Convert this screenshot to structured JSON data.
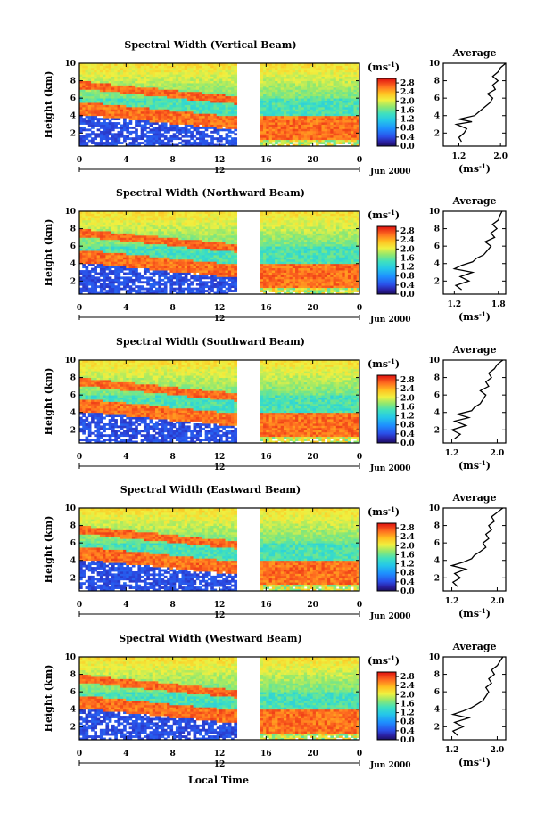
{
  "figure": {
    "xlabel": "Local Time",
    "height_label": "Height (km)",
    "cbar_unit_prefix": "(ms",
    "cbar_unit_exp": "-1",
    "cbar_unit_suffix": ")",
    "avg_title": "Average",
    "date_label": "Jun 2000",
    "midnight_label": "12",
    "missing_data_hours": [
      13.5,
      15.5
    ]
  },
  "chart_data": [
    {
      "type": "heatmap",
      "title": "Spectral Width (Vertical Beam)",
      "x_ticks": [
        "0",
        "4",
        "8",
        "12",
        "16",
        "20",
        "0"
      ],
      "x_range_hours": [
        0,
        24
      ],
      "y_ticks": [
        "2",
        "4",
        "6",
        "8",
        "10"
      ],
      "y_range_km": [
        0.5,
        10
      ],
      "colorbar_ticks": [
        "0.0",
        "0.4",
        "0.8",
        "1.2",
        "1.6",
        "2.0",
        "2.4",
        "2.8"
      ],
      "colorbar_range": [
        0,
        3.0
      ],
      "average_profile": {
        "x_ticks": [
          "1.2",
          "2.0"
        ],
        "xlim": [
          0.9,
          2.1
        ],
        "heights": [
          1.0,
          1.5,
          2.0,
          2.5,
          3.0,
          3.3,
          3.6,
          4.0,
          4.5,
          5.0,
          5.5,
          6.0,
          6.5,
          7.0,
          7.5,
          8.0,
          8.5,
          9.0,
          9.5,
          10.0
        ],
        "values": [
          1.25,
          1.2,
          1.3,
          1.35,
          1.15,
          1.45,
          1.2,
          1.5,
          1.6,
          1.7,
          1.8,
          1.85,
          1.75,
          1.9,
          1.85,
          1.95,
          1.85,
          1.95,
          2.0,
          2.1
        ]
      }
    },
    {
      "type": "heatmap",
      "title": "Spectral Width (Northward Beam)",
      "x_ticks": [
        "0",
        "4",
        "8",
        "12",
        "16",
        "20",
        "0"
      ],
      "x_range_hours": [
        0,
        24
      ],
      "y_ticks": [
        "2",
        "4",
        "6",
        "8",
        "10"
      ],
      "y_range_km": [
        0.5,
        10
      ],
      "colorbar_ticks": [
        "0.0",
        "0.4",
        "0.8",
        "1.2",
        "1.6",
        "2.0",
        "2.4",
        "2.8"
      ],
      "colorbar_range": [
        0,
        3.0
      ],
      "average_profile": {
        "x_ticks": [
          "1.2",
          "1.8"
        ],
        "xlim": [
          1.05,
          1.9
        ],
        "heights": [
          1.0,
          1.5,
          2.0,
          2.5,
          3.0,
          3.4,
          3.8,
          4.2,
          4.6,
          5.0,
          5.5,
          6.0,
          6.5,
          7.0,
          7.5,
          8.0,
          8.5,
          9.0,
          9.5,
          10.0
        ],
        "values": [
          1.3,
          1.22,
          1.4,
          1.28,
          1.45,
          1.2,
          1.3,
          1.45,
          1.5,
          1.6,
          1.65,
          1.7,
          1.62,
          1.75,
          1.7,
          1.78,
          1.72,
          1.8,
          1.82,
          1.85
        ]
      }
    },
    {
      "type": "heatmap",
      "title": "Spectral Width (Southward Beam)",
      "x_ticks": [
        "0",
        "4",
        "8",
        "12",
        "16",
        "20",
        "0"
      ],
      "x_range_hours": [
        0,
        24
      ],
      "y_ticks": [
        "2",
        "4",
        "6",
        "8",
        "10"
      ],
      "y_range_km": [
        0.5,
        10
      ],
      "colorbar_ticks": [
        "0.0",
        "0.4",
        "0.8",
        "1.2",
        "1.6",
        "2.0",
        "2.4",
        "2.8"
      ],
      "colorbar_range": [
        0,
        3.0
      ],
      "average_profile": {
        "x_ticks": [
          "1.2",
          "2.0"
        ],
        "xlim": [
          1.05,
          2.15
        ],
        "heights": [
          1.0,
          1.5,
          2.0,
          2.5,
          3.0,
          3.4,
          3.8,
          4.2,
          4.6,
          5.0,
          5.5,
          6.0,
          6.5,
          7.0,
          7.5,
          8.0,
          8.5,
          9.0,
          9.5,
          10.0
        ],
        "values": [
          1.25,
          1.35,
          1.2,
          1.45,
          1.25,
          1.5,
          1.3,
          1.55,
          1.6,
          1.7,
          1.75,
          1.8,
          1.7,
          1.85,
          1.8,
          1.9,
          1.85,
          1.95,
          2.0,
          2.1
        ]
      }
    },
    {
      "type": "heatmap",
      "title": "Spectral Width (Eastward Beam)",
      "x_ticks": [
        "0",
        "4",
        "8",
        "12",
        "16",
        "20",
        "0"
      ],
      "x_range_hours": [
        0,
        24
      ],
      "y_ticks": [
        "2",
        "4",
        "6",
        "8",
        "10"
      ],
      "y_range_km": [
        0.5,
        10
      ],
      "colorbar_ticks": [
        "0.0",
        "0.4",
        "0.8",
        "1.2",
        "1.6",
        "2.0",
        "2.4",
        "2.8"
      ],
      "colorbar_range": [
        0,
        3.0
      ],
      "average_profile": {
        "x_ticks": [
          "1.2",
          "2.0"
        ],
        "xlim": [
          1.05,
          2.15
        ],
        "heights": [
          1.0,
          1.5,
          2.0,
          2.5,
          3.0,
          3.4,
          3.8,
          4.2,
          4.6,
          5.0,
          5.5,
          6.0,
          6.5,
          7.0,
          7.5,
          8.0,
          8.5,
          9.0,
          9.5,
          10.0
        ],
        "values": [
          1.3,
          1.22,
          1.35,
          1.25,
          1.45,
          1.2,
          1.4,
          1.55,
          1.6,
          1.7,
          1.8,
          1.75,
          1.85,
          1.8,
          1.9,
          1.85,
          1.95,
          1.9,
          2.0,
          2.1
        ]
      }
    },
    {
      "type": "heatmap",
      "title": "Spectral Width (Westward Beam)",
      "x_ticks": [
        "0",
        "4",
        "8",
        "12",
        "16",
        "20",
        "0"
      ],
      "x_range_hours": [
        0,
        24
      ],
      "y_ticks": [
        "2",
        "4",
        "6",
        "8",
        "10"
      ],
      "y_range_km": [
        0.5,
        10
      ],
      "colorbar_ticks": [
        "0.0",
        "0.4",
        "0.8",
        "1.2",
        "1.6",
        "2.0",
        "2.4",
        "2.8"
      ],
      "colorbar_range": [
        0,
        3.0
      ],
      "average_profile": {
        "x_ticks": [
          "1.2",
          "2.0"
        ],
        "xlim": [
          1.05,
          2.15
        ],
        "heights": [
          1.0,
          1.5,
          2.0,
          2.5,
          3.0,
          3.4,
          3.8,
          4.2,
          4.6,
          5.0,
          5.5,
          6.0,
          6.5,
          7.0,
          7.5,
          8.0,
          8.5,
          9.0,
          9.5,
          10.0
        ],
        "values": [
          1.3,
          1.22,
          1.4,
          1.25,
          1.5,
          1.22,
          1.4,
          1.55,
          1.65,
          1.75,
          1.8,
          1.85,
          1.8,
          1.9,
          1.85,
          1.95,
          1.9,
          2.0,
          2.05,
          2.1
        ]
      }
    }
  ]
}
